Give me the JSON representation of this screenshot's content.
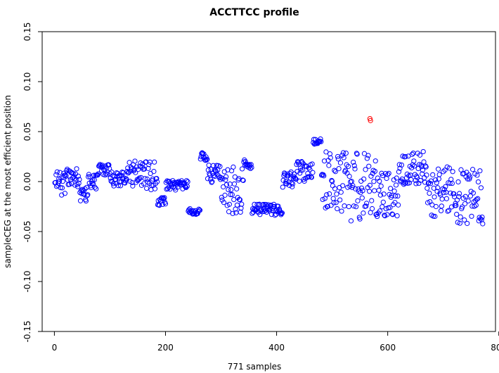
{
  "chart_data": {
    "type": "scatter",
    "title": "ACCTTCC profile",
    "xlabel": "771 samples",
    "ylabel": "sampleCEG at the most efficient position",
    "xlim": [
      -22,
      794
    ],
    "ylim": [
      -0.15,
      0.15
    ],
    "x_ticks": [
      0,
      200,
      400,
      600,
      800
    ],
    "x_tick_labels": [
      "0",
      "200",
      "400",
      "600",
      "800"
    ],
    "y_ticks": [
      -0.15,
      -0.1,
      -0.05,
      0.0,
      0.05,
      0.1,
      0.15
    ],
    "y_tick_labels": [
      "-0.15",
      "-0.10",
      "-0.05",
      "0.00",
      "0.05",
      "0.10",
      "0.15"
    ],
    "grid": false,
    "marker": "open-circle",
    "colors": {
      "default": "#0000ff",
      "highlight": "#ff0000"
    },
    "highlighted_points": [
      {
        "x": 568,
        "y": 0.063
      },
      {
        "x": 569,
        "y": 0.061
      }
    ],
    "segments": [
      {
        "x0": 1,
        "x1": 20,
        "center": -0.002,
        "spread": 0.012
      },
      {
        "x0": 21,
        "x1": 45,
        "center": 0.004,
        "spread": 0.01
      },
      {
        "x0": 46,
        "x1": 60,
        "center": -0.012,
        "spread": 0.008
      },
      {
        "x0": 61,
        "x1": 75,
        "center": 0.0,
        "spread": 0.008
      },
      {
        "x0": 76,
        "x1": 100,
        "center": 0.012,
        "spread": 0.006
      },
      {
        "x0": 101,
        "x1": 130,
        "center": 0.002,
        "spread": 0.008
      },
      {
        "x0": 131,
        "x1": 160,
        "center": 0.008,
        "spread": 0.013
      },
      {
        "x0": 161,
        "x1": 185,
        "center": 0.005,
        "spread": 0.015
      },
      {
        "x0": 186,
        "x1": 200,
        "center": -0.02,
        "spread": 0.004
      },
      {
        "x0": 201,
        "x1": 240,
        "center": -0.004,
        "spread": 0.005
      },
      {
        "x0": 241,
        "x1": 262,
        "center": -0.03,
        "spread": 0.003
      },
      {
        "x0": 263,
        "x1": 275,
        "center": 0.024,
        "spread": 0.005
      },
      {
        "x0": 276,
        "x1": 300,
        "center": 0.008,
        "spread": 0.01
      },
      {
        "x0": 301,
        "x1": 340,
        "center": -0.01,
        "spread": 0.025
      },
      {
        "x0": 341,
        "x1": 355,
        "center": 0.018,
        "spread": 0.005
      },
      {
        "x0": 356,
        "x1": 410,
        "center": -0.028,
        "spread": 0.006
      },
      {
        "x0": 411,
        "x1": 430,
        "center": 0.002,
        "spread": 0.008
      },
      {
        "x0": 431,
        "x1": 465,
        "center": 0.01,
        "spread": 0.01
      },
      {
        "x0": 466,
        "x1": 480,
        "center": 0.04,
        "spread": 0.003
      },
      {
        "x0": 481,
        "x1": 530,
        "center": 0.0,
        "spread": 0.03
      },
      {
        "x0": 531,
        "x1": 580,
        "center": -0.005,
        "spread": 0.035
      },
      {
        "x0": 581,
        "x1": 620,
        "center": -0.01,
        "spread": 0.025
      },
      {
        "x0": 621,
        "x1": 670,
        "center": 0.015,
        "spread": 0.018
      },
      {
        "x0": 671,
        "x1": 720,
        "center": -0.01,
        "spread": 0.025
      },
      {
        "x0": 721,
        "x1": 771,
        "center": -0.015,
        "spread": 0.028
      }
    ]
  }
}
